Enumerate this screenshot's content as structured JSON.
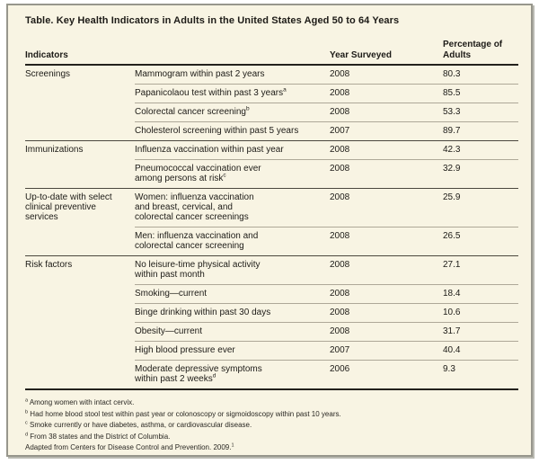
{
  "table": {
    "title": "Table. Key Health Indicators in Adults in the United States Aged 50 to 64 Years",
    "columns": {
      "indicators": "Indicators",
      "year": "Year Surveyed",
      "percentage": "Percentage of\nAdults"
    },
    "groups": [
      {
        "category": "Screenings",
        "rows": [
          {
            "indicator": "Mammogram within past 2 years",
            "year": "2008",
            "pct": "80.3"
          },
          {
            "indicator": "Papanicolaou test within past 3 years",
            "sup": "a",
            "year": "2008",
            "pct": "85.5"
          },
          {
            "indicator": "Colorectal cancer screening",
            "sup": "b",
            "year": "2008",
            "pct": "53.3"
          },
          {
            "indicator": "Cholesterol screening within past 5 years",
            "year": "2007",
            "pct": "89.7"
          }
        ]
      },
      {
        "category": "Immunizations",
        "rows": [
          {
            "indicator": "Influenza vaccination within past year",
            "year": "2008",
            "pct": "42.3"
          },
          {
            "indicator": "Pneumococcal vaccination ever\namong persons at risk",
            "sup": "c",
            "year": "2008",
            "pct": "32.9"
          }
        ]
      },
      {
        "category": "Up-to-date with select\nclinical preventive\nservices",
        "rows": [
          {
            "indicator": "Women: influenza vaccination\nand breast, cervical, and\ncolorectal cancer screenings",
            "year": "2008",
            "pct": "25.9"
          },
          {
            "indicator": "Men: influenza vaccination and\ncolorectal cancer screening",
            "year": "2008",
            "pct": "26.5"
          }
        ]
      },
      {
        "category": "Risk factors",
        "rows": [
          {
            "indicator": "No leisure-time physical activity\nwithin past month",
            "year": "2008",
            "pct": "27.1"
          },
          {
            "indicator": "Smoking—current",
            "year": "2008",
            "pct": "18.4"
          },
          {
            "indicator": "Binge drinking within past 30 days",
            "year": "2008",
            "pct": "10.6"
          },
          {
            "indicator": "Obesity—current",
            "year": "2008",
            "pct": "31.7"
          },
          {
            "indicator": "High blood pressure ever",
            "year": "2007",
            "pct": "40.4"
          },
          {
            "indicator": "Moderate depressive symptoms\nwithin past 2 weeks",
            "sup": "d",
            "year": "2006",
            "pct": "9.3"
          }
        ]
      }
    ]
  },
  "footnotes": [
    {
      "marker": "a",
      "text": "Among women with intact cervix."
    },
    {
      "marker": "b",
      "text": "Had home blood stool test within past year or colonoscopy or sigmoidoscopy within past 10 years."
    },
    {
      "marker": "c",
      "text": "Smoke currently or have diabetes, asthma, or cardiovascular disease."
    },
    {
      "marker": "d",
      "text": "From 38 states and the District of Columbia."
    }
  ],
  "source": {
    "text": "Adapted from Centers for Disease Control and Prevention. 2009.",
    "sup": "1"
  },
  "colors": {
    "background": "#f8f4e3",
    "frame_border": "#97968c",
    "heavy_rule": "#23211c",
    "group_rule": "#4b473e",
    "row_rule": "#aea898",
    "text": "#1d1b17"
  },
  "chart_data": {
    "type": "table",
    "title": "Table. Key Health Indicators in Adults in the United States Aged 50 to 64 Years",
    "columns": [
      "Indicators (group)",
      "Indicator",
      "Year Surveyed",
      "Percentage of Adults"
    ],
    "rows": [
      [
        "Screenings",
        "Mammogram within past 2 years",
        2008,
        80.3
      ],
      [
        "Screenings",
        "Papanicolaou test within past 3 years [a]",
        2008,
        85.5
      ],
      [
        "Screenings",
        "Colorectal cancer screening [b]",
        2008,
        53.3
      ],
      [
        "Screenings",
        "Cholesterol screening within past 5 years",
        2007,
        89.7
      ],
      [
        "Immunizations",
        "Influenza vaccination within past year",
        2008,
        42.3
      ],
      [
        "Immunizations",
        "Pneumococcal vaccination ever among persons at risk [c]",
        2008,
        32.9
      ],
      [
        "Up-to-date with select clinical preventive services",
        "Women: influenza vaccination and breast, cervical, and colorectal cancer screenings",
        2008,
        25.9
      ],
      [
        "Up-to-date with select clinical preventive services",
        "Men: influenza vaccination and colorectal cancer screening",
        2008,
        26.5
      ],
      [
        "Risk factors",
        "No leisure-time physical activity within past month",
        2008,
        27.1
      ],
      [
        "Risk factors",
        "Smoking—current",
        2008,
        18.4
      ],
      [
        "Risk factors",
        "Binge drinking within past 30 days",
        2008,
        10.6
      ],
      [
        "Risk factors",
        "Obesity—current",
        2008,
        31.7
      ],
      [
        "Risk factors",
        "High blood pressure ever",
        2007,
        40.4
      ],
      [
        "Risk factors",
        "Moderate depressive symptoms within past 2 weeks [d]",
        2006,
        9.3
      ]
    ],
    "footnotes": [
      "a Among women with intact cervix.",
      "b Had home blood stool test within past year or colonoscopy or sigmoidoscopy within past 10 years.",
      "c Smoke currently or have diabetes, asthma, or cardiovascular disease.",
      "d From 38 states and the District of Columbia.",
      "Adapted from Centers for Disease Control and Prevention. 2009.[1]"
    ]
  }
}
